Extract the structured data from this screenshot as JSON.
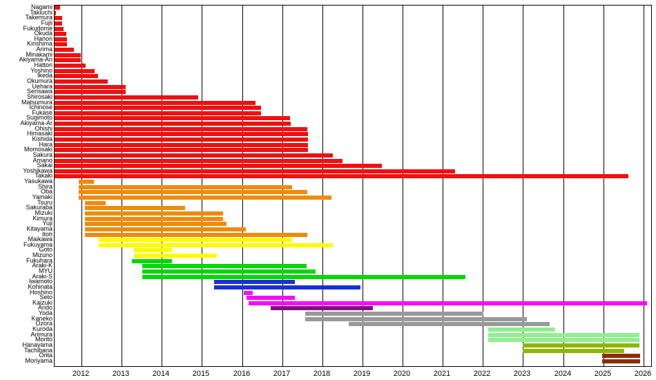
{
  "chart_data": {
    "type": "bar",
    "subtype": "horizontal-span-gantt",
    "title": "",
    "xlabel": "",
    "ylabel": "",
    "grid": "vertical-yearly",
    "legend": "none",
    "x_axis": {
      "min": 2011.33,
      "max": 2026.23,
      "tick_years": [
        2012,
        2013,
        2014,
        2015,
        2016,
        2017,
        2018,
        2019,
        2020,
        2021,
        2022,
        2023,
        2024,
        2025,
        2026
      ],
      "tick_labels": [
        "2012",
        "2013",
        "2014",
        "2015",
        "2016",
        "2017",
        "2018",
        "2019",
        "2020",
        "2021",
        "2022",
        "2023",
        "2024",
        "2025",
        "2026"
      ]
    },
    "groups": {
      "gen1": "#f01010",
      "gen2": "#ef8a0c",
      "gen3": "#fcfc00",
      "gen4": "#00d900",
      "gen5": "#1b2fd8",
      "gen6": "#fa0cfa",
      "gen7": "#870b87",
      "gen8": "#999999",
      "gen9": "#90ee90",
      "gen10": "#8ab800",
      "gen11": "#8f2c04"
    },
    "members": [
      {
        "name": "Nagami",
        "start": 2011.33,
        "end": 2011.47,
        "group": "gen1"
      },
      {
        "name": "Takiuchi",
        "start": 2011.33,
        "end": 2011.36,
        "group": "gen1"
      },
      {
        "name": "Takemura",
        "start": 2011.33,
        "end": 2011.52,
        "group": "gen1"
      },
      {
        "name": "Fujii",
        "start": 2011.33,
        "end": 2011.52,
        "group": "gen1"
      },
      {
        "name": "Fukudome",
        "start": 2011.33,
        "end": 2011.55,
        "group": "gen1"
      },
      {
        "name": "Okuda",
        "start": 2011.33,
        "end": 2011.62,
        "group": "gen1"
      },
      {
        "name": "Hanon",
        "start": 2011.33,
        "end": 2011.64,
        "group": "gen1"
      },
      {
        "name": "Kirishima",
        "start": 2011.33,
        "end": 2011.64,
        "group": "gen1"
      },
      {
        "name": "Arima",
        "start": 2011.33,
        "end": 2011.81,
        "group": "gen1"
      },
      {
        "name": "Minakami",
        "start": 2011.33,
        "end": 2011.98,
        "group": "gen1"
      },
      {
        "name": "Akiyama-An",
        "start": 2011.33,
        "end": 2011.98,
        "group": "gen1"
      },
      {
        "name": "Hattori",
        "start": 2011.33,
        "end": 2012.11,
        "group": "gen1"
      },
      {
        "name": "Yoshino",
        "start": 2011.33,
        "end": 2012.32,
        "group": "gen1"
      },
      {
        "name": "Ikeda",
        "start": 2011.33,
        "end": 2012.42,
        "group": "gen1"
      },
      {
        "name": "Okumura",
        "start": 2011.33,
        "end": 2012.66,
        "group": "gen1"
      },
      {
        "name": "Uehara",
        "start": 2011.33,
        "end": 2013.1,
        "group": "gen1"
      },
      {
        "name": "Serisawa",
        "start": 2011.33,
        "end": 2013.1,
        "group": "gen1"
      },
      {
        "name": "Shirosaki",
        "start": 2011.33,
        "end": 2014.91,
        "group": "gen1"
      },
      {
        "name": "Matsumura",
        "start": 2011.33,
        "end": 2016.33,
        "group": "gen1"
      },
      {
        "name": "Ichinose",
        "start": 2011.33,
        "end": 2016.47,
        "group": "gen1"
      },
      {
        "name": "Fukase",
        "start": 2011.33,
        "end": 2016.47,
        "group": "gen1"
      },
      {
        "name": "Sugimoto",
        "start": 2011.33,
        "end": 2017.19,
        "group": "gen1"
      },
      {
        "name": "Akiyama-Ar",
        "start": 2011.33,
        "end": 2017.22,
        "group": "gen1"
      },
      {
        "name": "Ohishi",
        "start": 2011.33,
        "end": 2017.62,
        "group": "gen1"
      },
      {
        "name": "Himasaki",
        "start": 2011.33,
        "end": 2017.64,
        "group": "gen1"
      },
      {
        "name": "Kishida",
        "start": 2011.33,
        "end": 2017.64,
        "group": "gen1"
      },
      {
        "name": "Hara",
        "start": 2011.33,
        "end": 2017.64,
        "group": "gen1"
      },
      {
        "name": "Momosaki",
        "start": 2011.33,
        "end": 2017.64,
        "group": "gen1"
      },
      {
        "name": "Sakura",
        "start": 2011.33,
        "end": 2018.26,
        "group": "gen1"
      },
      {
        "name": "Amano",
        "start": 2011.33,
        "end": 2018.5,
        "group": "gen1"
      },
      {
        "name": "Sakai",
        "start": 2011.33,
        "end": 2019.48,
        "group": "gen1"
      },
      {
        "name": "Yoshikawa",
        "start": 2011.33,
        "end": 2021.31,
        "group": "gen1"
      },
      {
        "name": "Takaki",
        "start": 2011.33,
        "end": 2025.62,
        "group": "gen1"
      },
      {
        "name": "Yasukawa",
        "start": 2011.93,
        "end": 2012.31,
        "group": "gen2"
      },
      {
        "name": "Shira",
        "start": 2011.93,
        "end": 2017.24,
        "group": "gen2"
      },
      {
        "name": "Oba",
        "start": 2011.93,
        "end": 2017.62,
        "group": "gen2"
      },
      {
        "name": "Yamaki",
        "start": 2011.93,
        "end": 2018.22,
        "group": "gen2"
      },
      {
        "name": "Tsuru",
        "start": 2012.09,
        "end": 2012.6,
        "group": "gen2"
      },
      {
        "name": "Sakuraba",
        "start": 2012.09,
        "end": 2014.59,
        "group": "gen2"
      },
      {
        "name": "Mizuki",
        "start": 2012.09,
        "end": 2015.53,
        "group": "gen2"
      },
      {
        "name": "Kimura",
        "start": 2012.09,
        "end": 2015.53,
        "group": "gen2"
      },
      {
        "name": "Yuji",
        "start": 2012.09,
        "end": 2015.62,
        "group": "gen2"
      },
      {
        "name": "Kitayama",
        "start": 2012.09,
        "end": 2016.1,
        "group": "gen2"
      },
      {
        "name": "Itoh",
        "start": 2012.09,
        "end": 2017.62,
        "group": "gen2"
      },
      {
        "name": "Maikawa",
        "start": 2012.43,
        "end": 2017.24,
        "group": "gen3"
      },
      {
        "name": "Fukuyama",
        "start": 2012.43,
        "end": 2018.26,
        "group": "gen3"
      },
      {
        "name": "Goto",
        "start": 2013.31,
        "end": 2014.26,
        "group": "gen3"
      },
      {
        "name": "Mizuno",
        "start": 2013.31,
        "end": 2015.38,
        "group": "gen3"
      },
      {
        "name": "Fukuhara",
        "start": 2013.26,
        "end": 2014.26,
        "group": "gen4"
      },
      {
        "name": "Araki-K",
        "start": 2013.52,
        "end": 2017.62,
        "group": "gen4"
      },
      {
        "name": "MYU",
        "start": 2013.52,
        "end": 2017.84,
        "group": "gen4"
      },
      {
        "name": "Araki-S",
        "start": 2013.52,
        "end": 2021.57,
        "group": "gen4"
      },
      {
        "name": "Iwamoto",
        "start": 2015.31,
        "end": 2017.33,
        "group": "gen5"
      },
      {
        "name": "Kohinata",
        "start": 2015.31,
        "end": 2018.95,
        "group": "gen5"
      },
      {
        "name": "Hoshino",
        "start": 2016.05,
        "end": 2016.28,
        "group": "gen6"
      },
      {
        "name": "Seto",
        "start": 2016.12,
        "end": 2017.33,
        "group": "gen6"
      },
      {
        "name": "Kaizuki",
        "start": 2016.17,
        "end": 2026.1,
        "group": "gen6"
      },
      {
        "name": "Ando",
        "start": 2016.71,
        "end": 2019.26,
        "group": "gen7"
      },
      {
        "name": "Yoda",
        "start": 2017.57,
        "end": 2022.0,
        "group": "gen8"
      },
      {
        "name": "Kaneko",
        "start": 2017.57,
        "end": 2023.09,
        "group": "gen8"
      },
      {
        "name": "Ozora",
        "start": 2018.66,
        "end": 2023.66,
        "group": "gen8"
      },
      {
        "name": "Kuroda",
        "start": 2022.14,
        "end": 2023.81,
        "group": "gen9"
      },
      {
        "name": "Arimura",
        "start": 2022.14,
        "end": 2025.91,
        "group": "gen9"
      },
      {
        "name": "Morito",
        "start": 2022.14,
        "end": 2025.91,
        "group": "gen9"
      },
      {
        "name": "Hanayama",
        "start": 2023.0,
        "end": 2025.9,
        "group": "gen10"
      },
      {
        "name": "Tachibana",
        "start": 2023.0,
        "end": 2025.53,
        "group": "gen10"
      },
      {
        "name": "Orita",
        "start": 2024.97,
        "end": 2025.91,
        "group": "gen11"
      },
      {
        "name": "Moriyama",
        "start": 2024.97,
        "end": 2025.91,
        "group": "gen11"
      }
    ]
  }
}
